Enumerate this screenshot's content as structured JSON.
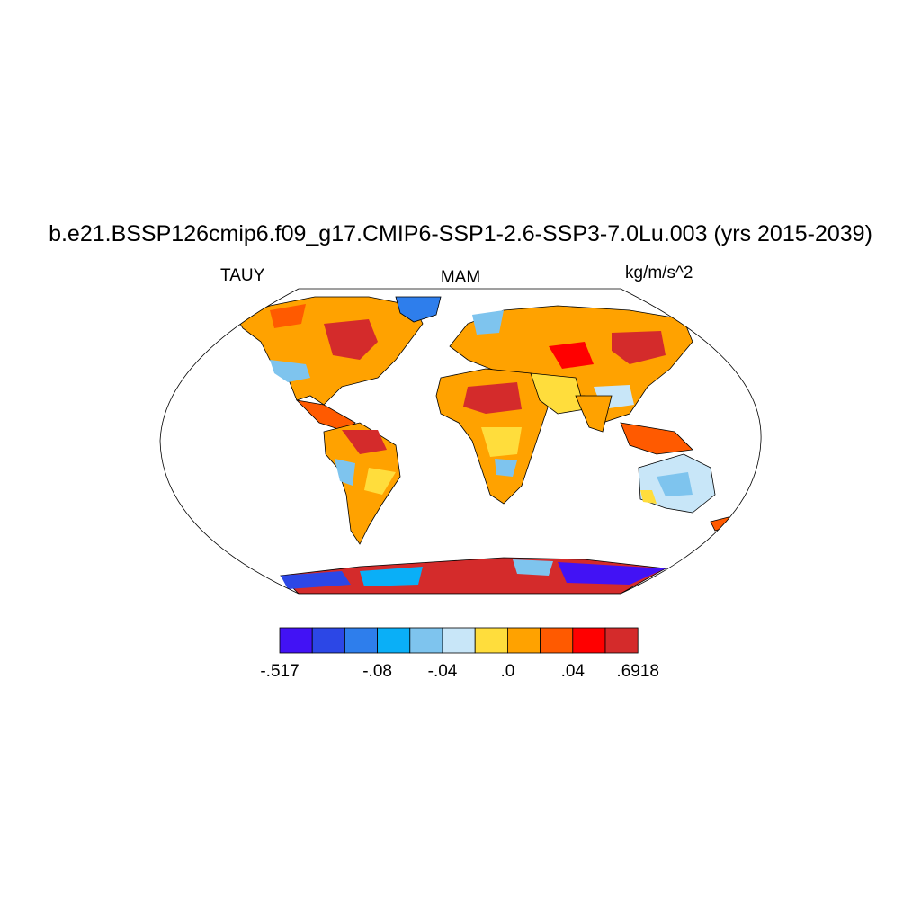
{
  "title": "b.e21.BSSP126cmip6.f09_g17.CMIP6-SSP1-2.6-SSP3-7.0Lu.003 (yrs 2015-2039)",
  "left_label": "TAUY",
  "center_label": "MAM",
  "right_label": "kg/m/s^2",
  "colorbar": {
    "colors": [
      "#4212f5",
      "#2c47e6",
      "#2e7eec",
      "#0aaff7",
      "#7ec4ee",
      "#c8e6f8",
      "#ffdd3c",
      "#ffa200",
      "#ff5a00",
      "#ff0000",
      "#d42b2b"
    ],
    "labels": [
      {
        "text": "-.517",
        "boundary": 0
      },
      {
        "text": "-.08",
        "boundary": 3
      },
      {
        "text": "-.04",
        "boundary": 5
      },
      {
        "text": ".0",
        "boundary": 7
      },
      {
        "text": ".04",
        "boundary": 9
      },
      {
        "text": ".6918",
        "boundary": 11
      }
    ]
  },
  "map": {
    "projection": "robinson",
    "variable": "TAUY",
    "season": "MAM",
    "units": "kg/m/s^2"
  }
}
